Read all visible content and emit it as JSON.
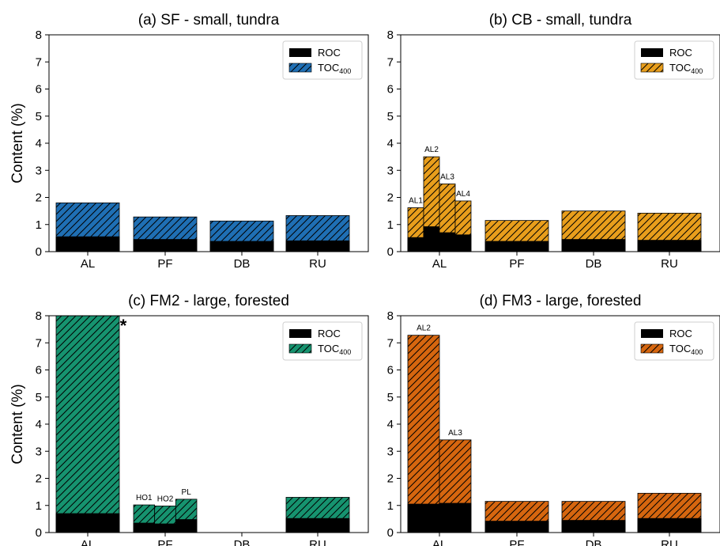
{
  "colors": {
    "blue": "#1f6fb4",
    "yellow": "#e89e1c",
    "green": "#16936f",
    "orange": "#d6660f",
    "roc": "#000000"
  },
  "chart_data": [
    {
      "type": "bar",
      "panel": "(a)",
      "title": "SF - small, tundra",
      "ylabel": "Content (%)",
      "ylim": [
        0,
        8
      ],
      "yticks": [
        "0",
        "1",
        "2",
        "3",
        "4",
        "5",
        "6",
        "7",
        "8"
      ],
      "color_key": "blue",
      "categories": [
        "AL",
        "PF",
        "DB",
        "RU"
      ],
      "legend": {
        "roc": "ROC",
        "toc": "TOC",
        "toc_sub": "400",
        "placement": "top-right"
      },
      "bars": [
        {
          "category": "AL",
          "label": "",
          "roc": 0.55,
          "toc": 1.8
        },
        {
          "category": "PF",
          "label": "",
          "roc": 0.45,
          "toc": 1.28
        },
        {
          "category": "DB",
          "label": "",
          "roc": 0.38,
          "toc": 1.13
        },
        {
          "category": "RU",
          "label": "",
          "roc": 0.4,
          "toc": 1.33
        }
      ]
    },
    {
      "type": "bar",
      "panel": "(b)",
      "title": "CB - small, tundra",
      "ylabel": "",
      "ylim": [
        0,
        8
      ],
      "yticks": [
        "0",
        "1",
        "2",
        "3",
        "4",
        "5",
        "6",
        "7",
        "8"
      ],
      "color_key": "yellow",
      "categories": [
        "AL",
        "PF",
        "DB",
        "RU"
      ],
      "legend": {
        "roc": "ROC",
        "toc": "TOC",
        "toc_sub": "400",
        "placement": "top-right"
      },
      "bars": [
        {
          "category": "AL",
          "label": "AL1",
          "roc": 0.52,
          "toc": 1.62
        },
        {
          "category": "AL",
          "label": "AL2",
          "roc": 0.92,
          "toc": 3.5
        },
        {
          "category": "AL",
          "label": "AL3",
          "roc": 0.7,
          "toc": 2.5
        },
        {
          "category": "AL",
          "label": "AL4",
          "roc": 0.62,
          "toc": 1.87
        },
        {
          "category": "PF",
          "label": "",
          "roc": 0.38,
          "toc": 1.15
        },
        {
          "category": "DB",
          "label": "",
          "roc": 0.45,
          "toc": 1.5
        },
        {
          "category": "RU",
          "label": "",
          "roc": 0.42,
          "toc": 1.42
        }
      ]
    },
    {
      "type": "bar",
      "panel": "(c)",
      "title": "FM2 - large, forested",
      "ylabel": "Content (%)",
      "ylim": [
        0,
        8
      ],
      "yticks": [
        "0",
        "1",
        "2",
        "3",
        "4",
        "5",
        "6",
        "7",
        "8"
      ],
      "color_key": "green",
      "categories": [
        "AL",
        "PF",
        "DB",
        "RU"
      ],
      "legend": {
        "roc": "ROC",
        "toc": "TOC",
        "toc_sub": "400",
        "placement": "top-right"
      },
      "annotation": "*",
      "bars": [
        {
          "category": "AL",
          "label": "",
          "roc": 0.7,
          "toc": 8.0
        },
        {
          "category": "PF",
          "label": "HO1",
          "roc": 0.35,
          "toc": 1.02
        },
        {
          "category": "PF",
          "label": "HO2",
          "roc": 0.32,
          "toc": 0.98
        },
        {
          "category": "PF",
          "label": "PL",
          "roc": 0.48,
          "toc": 1.23
        },
        {
          "category": "RU",
          "label": "",
          "roc": 0.52,
          "toc": 1.3
        }
      ]
    },
    {
      "type": "bar",
      "panel": "(d)",
      "title": "FM3 - large, forested",
      "ylabel": "",
      "ylim": [
        0,
        8
      ],
      "yticks": [
        "0",
        "1",
        "2",
        "3",
        "4",
        "5",
        "6",
        "7",
        "8"
      ],
      "color_key": "orange",
      "categories": [
        "AL",
        "PF",
        "DB",
        "RU"
      ],
      "legend": {
        "roc": "ROC",
        "toc": "TOC",
        "toc_sub": "400",
        "placement": "top-right"
      },
      "bars": [
        {
          "category": "AL",
          "label": "AL2",
          "roc": 1.05,
          "toc": 7.28
        },
        {
          "category": "AL",
          "label": "AL3",
          "roc": 1.08,
          "toc": 3.42
        },
        {
          "category": "PF",
          "label": "",
          "roc": 0.42,
          "toc": 1.15
        },
        {
          "category": "DB",
          "label": "",
          "roc": 0.45,
          "toc": 1.15
        },
        {
          "category": "RU",
          "label": "",
          "roc": 0.52,
          "toc": 1.45
        }
      ]
    }
  ]
}
